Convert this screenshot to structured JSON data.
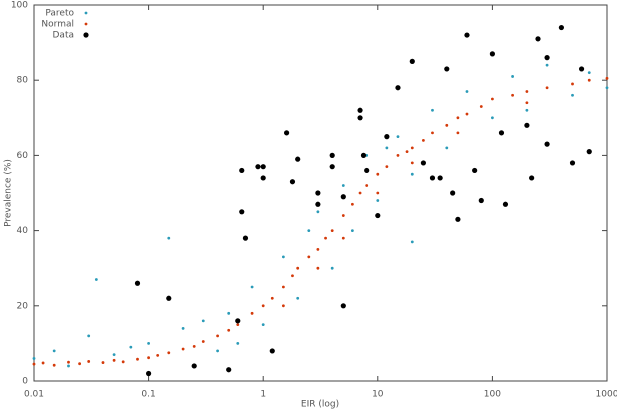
{
  "chart_data": {
    "type": "scatter",
    "xlabel": "EIR (log)",
    "ylabel": "Prevalence (%)",
    "xscale": "log",
    "xlim": [
      0.01,
      1000
    ],
    "xticks": [
      0.01,
      0.1,
      1,
      10,
      100,
      1000
    ],
    "ylim": [
      0,
      100
    ],
    "yticks": [
      0,
      20,
      40,
      60,
      80,
      100
    ],
    "legend": "upper left",
    "series": [
      {
        "name": "Pareto",
        "color": "#2a9bb8",
        "size": 1.4,
        "x": [
          0.01,
          0.015,
          0.02,
          0.03,
          0.035,
          0.05,
          0.07,
          0.1,
          0.15,
          0.2,
          0.3,
          0.4,
          0.5,
          0.6,
          0.8,
          1,
          1.5,
          2,
          2.5,
          3,
          4,
          5,
          6,
          8,
          10,
          12,
          15,
          20,
          20,
          30,
          40,
          60,
          100,
          150,
          200,
          300,
          500,
          700,
          1000
        ],
        "y": [
          6,
          8,
          4,
          12,
          27,
          7,
          9,
          10,
          38,
          14,
          16,
          8,
          18,
          10,
          25,
          15,
          33,
          22,
          40,
          45,
          30,
          52,
          40,
          60,
          48,
          62,
          65,
          37,
          55,
          72,
          62,
          77,
          70,
          81,
          72,
          84,
          76,
          82,
          78
        ]
      },
      {
        "name": "Normal",
        "color": "#d43a0a",
        "size": 1.4,
        "x": [
          0.01,
          0.012,
          0.015,
          0.02,
          0.025,
          0.03,
          0.04,
          0.05,
          0.06,
          0.08,
          0.1,
          0.12,
          0.15,
          0.2,
          0.25,
          0.3,
          0.4,
          0.5,
          0.6,
          0.8,
          1,
          1.2,
          1.5,
          1.5,
          1.8,
          2,
          2.5,
          3,
          3,
          3.5,
          4,
          5,
          5,
          6,
          7,
          8,
          10,
          10,
          12,
          15,
          18,
          20,
          20,
          25,
          30,
          40,
          50,
          50,
          60,
          80,
          100,
          150,
          200,
          200,
          300,
          500,
          700,
          1000
        ],
        "y": [
          4.5,
          4.8,
          4.2,
          5,
          4.6,
          5.2,
          4.9,
          5.5,
          5.1,
          5.8,
          6.2,
          6.8,
          7.5,
          8.5,
          9.2,
          10.5,
          12,
          13.5,
          15,
          18,
          20,
          22,
          25,
          20,
          28,
          30,
          33,
          35,
          30,
          38,
          40,
          44,
          38,
          47,
          50,
          52,
          55,
          50,
          57,
          60,
          61,
          62,
          58,
          64,
          66,
          68,
          70,
          66,
          71,
          73,
          75,
          76,
          77,
          74,
          78,
          79,
          80,
          80.5
        ]
      },
      {
        "name": "Data",
        "color": "#000000",
        "size": 2.6,
        "x": [
          0.08,
          0.15,
          0.1,
          0.25,
          0.5,
          0.65,
          0.65,
          0.7,
          0.9,
          1,
          1,
          1.6,
          1.8,
          2,
          3,
          3,
          4,
          4,
          5,
          5,
          7,
          7,
          7.5,
          8,
          10,
          12,
          15,
          20,
          25,
          30,
          35,
          40,
          45,
          50,
          60,
          70,
          80,
          100,
          120,
          130,
          200,
          220,
          250,
          300,
          300,
          400,
          500,
          600,
          700,
          0.6,
          1.2
        ],
        "y": [
          26,
          22,
          2,
          4,
          3,
          56,
          45,
          38,
          57,
          57,
          54,
          66,
          53,
          59,
          50,
          47,
          57,
          60,
          49,
          20,
          72,
          70,
          60,
          56,
          44,
          65,
          78,
          85,
          58,
          54,
          54,
          83,
          50,
          43,
          92,
          56,
          48,
          87,
          66,
          47,
          68,
          54,
          91,
          86,
          63,
          94,
          58,
          83,
          61,
          16,
          8
        ]
      }
    ]
  }
}
